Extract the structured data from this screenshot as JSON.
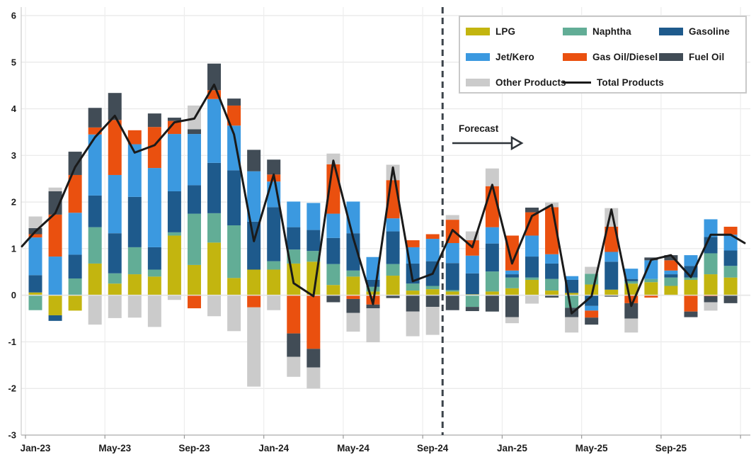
{
  "figure_name": "Monthly oil product demand growth, stacked by product, with total products line and forecast period",
  "annotations": {
    "forecast_label": "Forecast"
  },
  "legend": {
    "rows": [
      [
        {
          "label": "LPG",
          "slug": "lpg",
          "swatch": "box",
          "color": "#c3b50f"
        },
        {
          "label": "Naphtha",
          "slug": "naphtha",
          "swatch": "box",
          "color": "#62ad96"
        },
        {
          "label": "Gasoline",
          "slug": "gasoline",
          "swatch": "box",
          "color": "#1e5a8c"
        }
      ],
      [
        {
          "label": "Jet/Kero",
          "slug": "jet-kero",
          "swatch": "box",
          "color": "#3b99e0"
        },
        {
          "label": "Gas Oil/Diesel",
          "slug": "gas-oil-diesel",
          "swatch": "box",
          "color": "#ea500f"
        },
        {
          "label": "Fuel Oil",
          "slug": "fuel-oil",
          "swatch": "box",
          "color": "#414c56"
        }
      ],
      [
        {
          "label": "Other Products",
          "slug": "other-products",
          "swatch": "box",
          "color": "#cbcbcb"
        },
        {
          "label": "Total Products",
          "slug": "total-products",
          "swatch": "line",
          "color": "#1a1a1a"
        }
      ]
    ]
  },
  "chart_data": {
    "type": "bar",
    "stacked": true,
    "grid": true,
    "ylim": [
      -3,
      6
    ],
    "y_ticks": [
      -3,
      -2,
      -1,
      0,
      1,
      2,
      3,
      4,
      5,
      6
    ],
    "categories": [
      "Jan-23",
      "Feb-23",
      "Mar-23",
      "Apr-23",
      "May-23",
      "Jun-23",
      "Jul-23",
      "Aug-23",
      "Sep-23",
      "Oct-23",
      "Nov-23",
      "Dec-23",
      "Jan-24",
      "Feb-24",
      "Mar-24",
      "Apr-24",
      "May-24",
      "Jun-24",
      "Jul-24",
      "Aug-24",
      "Sep-24",
      "Oct-24",
      "Nov-24",
      "Dec-24",
      "Jan-25",
      "Feb-25",
      "Mar-25",
      "Apr-25",
      "May-25",
      "Jun-25",
      "Jul-25",
      "Aug-25",
      "Sep-25",
      "Oct-25",
      "Nov-25",
      "Dec-25"
    ],
    "x_tick_labels": [
      "Jan-23",
      "May-23",
      "Sep-23",
      "Jan-24",
      "May-24",
      "Sep-24",
      "Jan-25",
      "May-25",
      "Sep-25"
    ],
    "x_tick_every": 4,
    "series": [
      {
        "name": "LPG",
        "color": "#c3b50f",
        "values": [
          0.06,
          -0.43,
          -0.33,
          0.68,
          0.25,
          0.45,
          0.4,
          1.28,
          0.65,
          1.13,
          0.37,
          0.55,
          0.55,
          0.68,
          0.72,
          0.22,
          0.4,
          0.08,
          0.42,
          0.1,
          0.13,
          0.08,
          0.02,
          0.08,
          0.15,
          0.33,
          0.1,
          0.05,
          0.23,
          0.12,
          0.25,
          0.28,
          0.2,
          0.33,
          0.45,
          0.38
        ]
      },
      {
        "name": "Naphtha",
        "color": "#62ad96",
        "values": [
          -0.32,
          0.0,
          0.36,
          0.78,
          0.22,
          0.58,
          0.15,
          0.07,
          1.1,
          0.63,
          1.13,
          0.0,
          0.18,
          0.3,
          0.23,
          0.45,
          0.13,
          0.1,
          0.25,
          0.15,
          0.07,
          0.03,
          -0.25,
          0.43,
          0.23,
          0.05,
          0.25,
          -0.27,
          0.23,
          0.0,
          0.05,
          0.07,
          0.18,
          0.05,
          0.45,
          0.25
        ]
      },
      {
        "name": "Gasoline",
        "color": "#1e5a8c",
        "values": [
          0.37,
          -0.12,
          0.51,
          0.68,
          0.86,
          1.08,
          0.48,
          0.88,
          0.61,
          1.08,
          1.18,
          1.03,
          1.16,
          0.48,
          0.45,
          0.56,
          0.8,
          0.15,
          0.7,
          0.43,
          0.53,
          0.58,
          0.45,
          0.6,
          0.07,
          0.45,
          0.33,
          0.28,
          -0.23,
          0.6,
          0.05,
          0.0,
          0.07,
          0.25,
          0.35,
          0.33
        ]
      },
      {
        "name": "Jet/Kero",
        "color": "#3b99e0",
        "values": [
          0.81,
          0.83,
          0.9,
          1.31,
          1.25,
          1.13,
          1.7,
          1.23,
          1.1,
          1.37,
          0.96,
          1.08,
          0.55,
          0.55,
          0.58,
          0.52,
          0.68,
          0.49,
          0.28,
          0.35,
          0.48,
          0.43,
          0.38,
          0.35,
          0.08,
          0.45,
          0.2,
          0.08,
          -0.1,
          0.21,
          0.22,
          0.4,
          0.08,
          0.23,
          0.38,
          0.34
        ]
      },
      {
        "name": "Gas Oil/Diesel",
        "color": "#ea500f",
        "values": [
          0.07,
          0.9,
          0.81,
          0.15,
          1.18,
          0.3,
          0.88,
          0.28,
          -0.28,
          0.19,
          0.43,
          -0.26,
          0.15,
          -0.82,
          -1.15,
          1.06,
          -0.08,
          -0.2,
          0.82,
          0.15,
          0.1,
          0.5,
          0.33,
          0.88,
          0.75,
          0.5,
          1.01,
          0.0,
          -0.15,
          0.54,
          -0.17,
          -0.05,
          0.22,
          -0.35,
          -0.02,
          0.17
        ]
      },
      {
        "name": "Fuel Oil",
        "color": "#414c56",
        "values": [
          0.13,
          0.5,
          0.5,
          0.42,
          0.58,
          0.0,
          0.29,
          0.07,
          0.1,
          0.57,
          0.15,
          0.46,
          0.32,
          -0.5,
          -0.4,
          -0.15,
          -0.3,
          -0.08,
          -0.06,
          -0.35,
          -0.25,
          -0.32,
          -0.09,
          -0.35,
          -0.47,
          0.1,
          -0.05,
          -0.2,
          -0.15,
          -0.03,
          -0.33,
          0.06,
          0.11,
          -0.12,
          -0.13,
          -0.17
        ]
      },
      {
        "name": "Other Products",
        "color": "#cbcbcb",
        "values": [
          0.25,
          0.08,
          0.0,
          -0.63,
          -0.49,
          -0.48,
          -0.68,
          -0.1,
          0.51,
          -0.45,
          -0.77,
          -1.7,
          -0.32,
          -0.43,
          -0.45,
          0.23,
          -0.4,
          -0.73,
          0.33,
          -0.53,
          -0.6,
          0.1,
          0.19,
          0.38,
          -0.13,
          -0.18,
          0.1,
          -0.33,
          0.15,
          0.4,
          -0.3,
          0.0,
          0.0,
          0.0,
          -0.18,
          0.0
        ]
      }
    ],
    "line_series": {
      "name": "Total Products",
      "color": "#1a1a1a",
      "values": [
        1.37,
        1.76,
        2.75,
        3.39,
        3.85,
        3.06,
        3.22,
        3.71,
        3.79,
        4.52,
        3.45,
        1.16,
        2.59,
        0.26,
        -0.02,
        2.89,
        1.23,
        -0.19,
        2.74,
        0.3,
        0.46,
        1.4,
        1.03,
        2.37,
        0.68,
        1.7,
        1.94,
        -0.39,
        -0.02,
        1.84,
        -0.23,
        0.76,
        0.86,
        0.39,
        1.3,
        1.3
      ],
      "edge_start": 1.05,
      "edge_end": 1.12
    },
    "forecast_divider_after_index": 20
  }
}
